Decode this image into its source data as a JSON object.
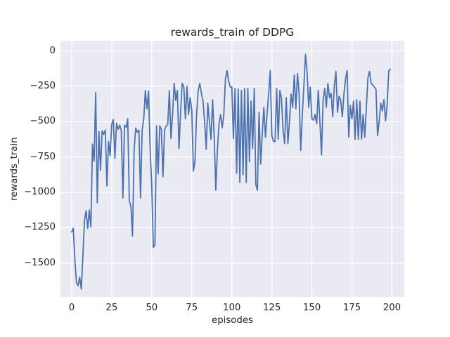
{
  "chart_data": {
    "type": "line",
    "title": "rewards_train of DDPG",
    "xlabel": "episodes",
    "ylabel": "rewards_train",
    "grid": true,
    "legend": false,
    "xlim": [
      -7,
      207.7
    ],
    "ylim": [
      -1740,
      72
    ],
    "xticks": [
      0,
      25,
      50,
      75,
      100,
      125,
      150,
      175,
      200
    ],
    "yticks": [
      0,
      -250,
      -500,
      -750,
      -1000,
      -1250,
      -1500
    ],
    "colors": {
      "line": "#4c72b0",
      "plot_background": "#eaeaf2",
      "grid": "#ffffff",
      "text": "#262626",
      "figure_background": "#ffffff"
    },
    "series": [
      {
        "name": "rewards_train",
        "color": "#4c72b0",
        "x_start": 0,
        "x_step": 1,
        "values": [
          -1280,
          -1255,
          -1480,
          -1640,
          -1660,
          -1600,
          -1685,
          -1450,
          -1200,
          -1130,
          -1255,
          -1125,
          -1245,
          -660,
          -780,
          -295,
          -1075,
          -570,
          -845,
          -565,
          -590,
          -560,
          -955,
          -640,
          -740,
          -520,
          -485,
          -760,
          -510,
          -555,
          -525,
          -565,
          -1040,
          -525,
          -540,
          -480,
          -1060,
          -1100,
          -1310,
          -700,
          -545,
          -575,
          -560,
          -1040,
          -560,
          -480,
          -280,
          -410,
          -285,
          -700,
          -950,
          -1390,
          -1370,
          -530,
          -870,
          -530,
          -555,
          -890,
          -560,
          -530,
          -520,
          -280,
          -620,
          -450,
          -230,
          -350,
          -280,
          -690,
          -440,
          -230,
          -250,
          -480,
          -250,
          -450,
          -330,
          -420,
          -850,
          -780,
          -450,
          -280,
          -230,
          -300,
          -355,
          -500,
          -695,
          -370,
          -500,
          -625,
          -345,
          -610,
          -985,
          -700,
          -515,
          -450,
          -545,
          -450,
          -200,
          -140,
          -210,
          -255,
          -255,
          -620,
          -265,
          -865,
          -270,
          -930,
          -280,
          -875,
          -265,
          -930,
          -265,
          -785,
          -355,
          -690,
          -265,
          -945,
          -985,
          -435,
          -800,
          -590,
          -400,
          -610,
          -450,
          -300,
          -140,
          -600,
          -640,
          -640,
          -265,
          -625,
          -280,
          -335,
          -560,
          -655,
          -330,
          -655,
          -500,
          -305,
          -400,
          -170,
          -410,
          -160,
          -300,
          -705,
          -450,
          -250,
          -25,
          -150,
          -400,
          -255,
          -480,
          -490,
          -450,
          -515,
          -280,
          -500,
          -735,
          -350,
          -265,
          -400,
          -230,
          -330,
          -300,
          -465,
          -250,
          -145,
          -435,
          -320,
          -350,
          -465,
          -305,
          -200,
          -140,
          -610,
          -385,
          -480,
          -355,
          -625,
          -345,
          -625,
          -355,
          -625,
          -450,
          -610,
          -400,
          -190,
          -145,
          -230,
          -240,
          -255,
          -270,
          -600,
          -500,
          -370,
          -425,
          -345,
          -495,
          -380,
          -140,
          -130
        ]
      }
    ]
  }
}
